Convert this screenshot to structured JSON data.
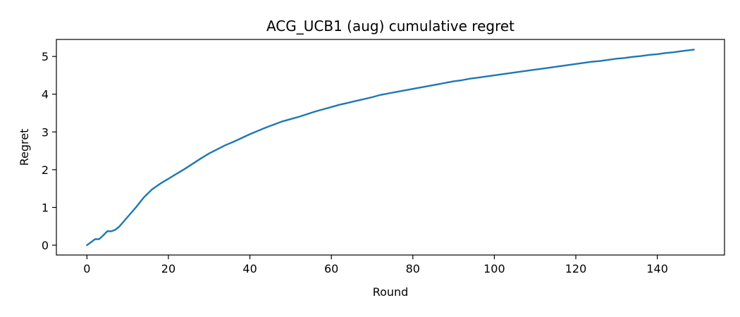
{
  "chart_data": {
    "type": "line",
    "title": "ACG_UCB1 (aug) cumulative regret",
    "xlabel": "Round",
    "ylabel": "Regret",
    "xlim": [
      -7.5,
      156.5
    ],
    "ylim": [
      -0.26,
      5.45
    ],
    "xticks": [
      0,
      20,
      40,
      60,
      80,
      100,
      120,
      140
    ],
    "yticks": [
      0,
      1,
      2,
      3,
      4,
      5
    ],
    "grid": false,
    "legend": "none",
    "colors": {
      "line": "#1f77b4",
      "axes": "#000000"
    },
    "series": [
      {
        "x": [
          0,
          2,
          3,
          4,
          5,
          6,
          7,
          8,
          10,
          12,
          14,
          16,
          18,
          20,
          22,
          24,
          26,
          28,
          30,
          32,
          34,
          36,
          38,
          40,
          42,
          44,
          46,
          48,
          50,
          52,
          54,
          56,
          58,
          60,
          62,
          64,
          66,
          68,
          70,
          72,
          74,
          76,
          78,
          80,
          82,
          84,
          86,
          88,
          90,
          92,
          94,
          96,
          98,
          100,
          102,
          104,
          106,
          108,
          110,
          112,
          114,
          116,
          118,
          120,
          122,
          124,
          126,
          128,
          130,
          132,
          134,
          136,
          138,
          140,
          142,
          144,
          146,
          149
        ],
        "y": [
          0.0,
          0.16,
          0.16,
          0.26,
          0.37,
          0.37,
          0.41,
          0.5,
          0.75,
          1.0,
          1.27,
          1.48,
          1.63,
          1.76,
          1.89,
          2.02,
          2.16,
          2.3,
          2.43,
          2.54,
          2.65,
          2.74,
          2.84,
          2.94,
          3.03,
          3.12,
          3.2,
          3.28,
          3.34,
          3.4,
          3.47,
          3.54,
          3.6,
          3.66,
          3.72,
          3.77,
          3.82,
          3.87,
          3.92,
          3.98,
          4.02,
          4.06,
          4.1,
          4.14,
          4.18,
          4.22,
          4.26,
          4.3,
          4.34,
          4.37,
          4.41,
          4.44,
          4.47,
          4.5,
          4.53,
          4.56,
          4.59,
          4.62,
          4.65,
          4.68,
          4.71,
          4.74,
          4.77,
          4.8,
          4.83,
          4.86,
          4.88,
          4.91,
          4.94,
          4.96,
          4.99,
          5.01,
          5.04,
          5.06,
          5.09,
          5.11,
          5.14,
          5.18
        ]
      }
    ]
  }
}
